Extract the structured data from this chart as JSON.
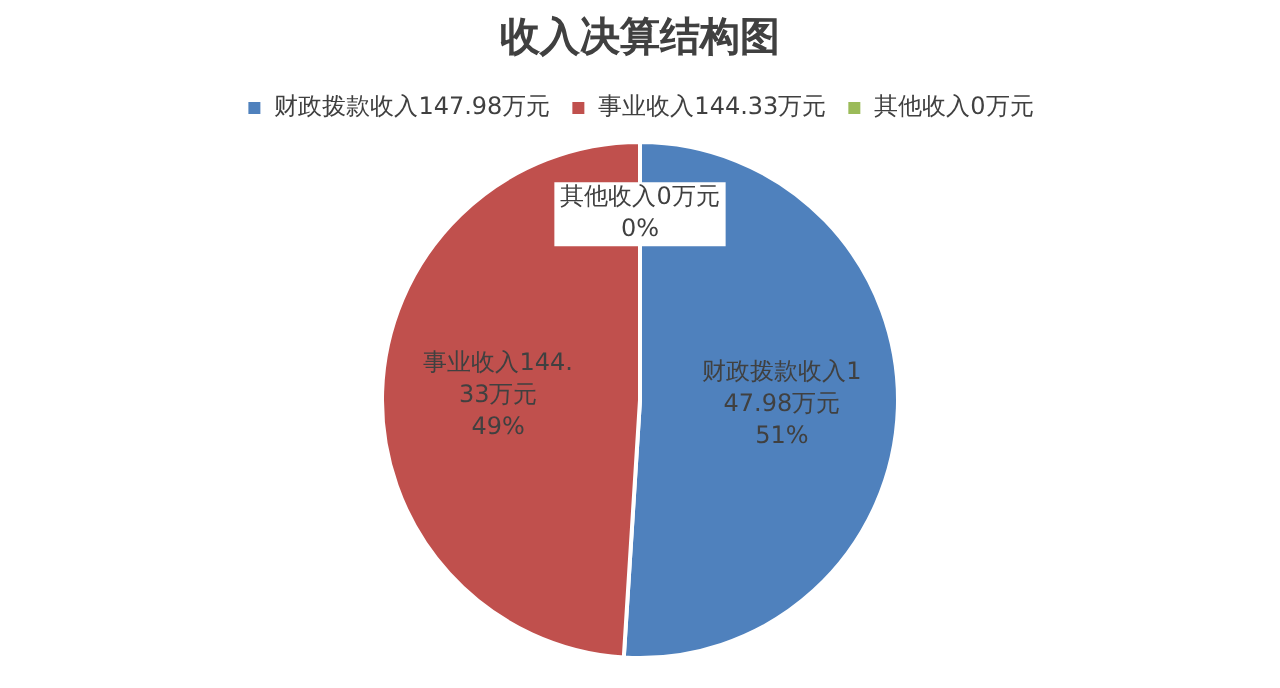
{
  "chart_data": {
    "type": "pie",
    "title": "收入决算结构图",
    "categories": [
      "财政拨款收入147.98万元",
      "事业收入144.33万元",
      "其他收入0万元"
    ],
    "values": [
      51,
      49,
      0
    ],
    "colors": [
      "#4f81bd",
      "#c0504d",
      "#9bbb59"
    ],
    "value_labels": [
      "51%",
      "49%",
      "0%"
    ],
    "legend": "top"
  }
}
